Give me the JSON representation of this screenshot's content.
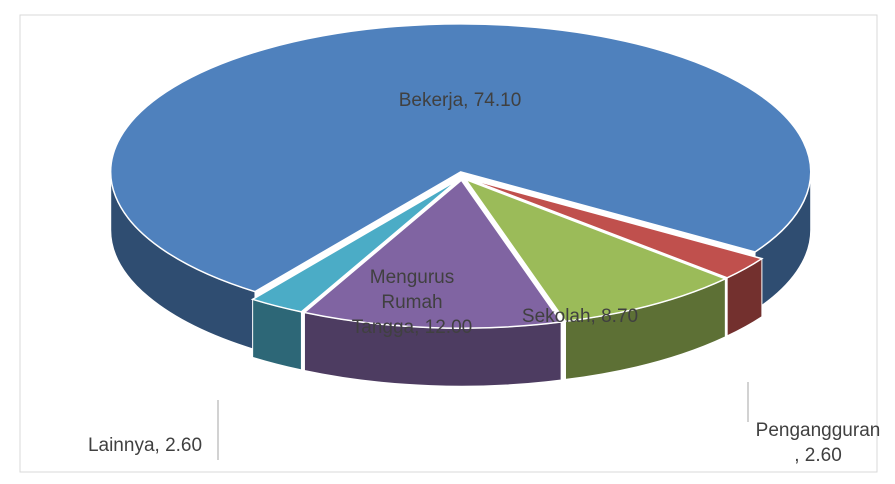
{
  "chart_data": {
    "type": "pie3d",
    "labels": [
      "Bekerja, 74.10",
      "Pengangguran\n, 2.60",
      "Sekolah, 8.70",
      "Mengurus\nRumah\nTangga, 12.00",
      "Lainnya, 2.60"
    ],
    "values": [
      74.1,
      2.6,
      8.7,
      12.0,
      2.6
    ],
    "colors": [
      "#4f81bd",
      "#c0504d",
      "#9bbb59",
      "#8064a2",
      "#4bacc6"
    ]
  }
}
